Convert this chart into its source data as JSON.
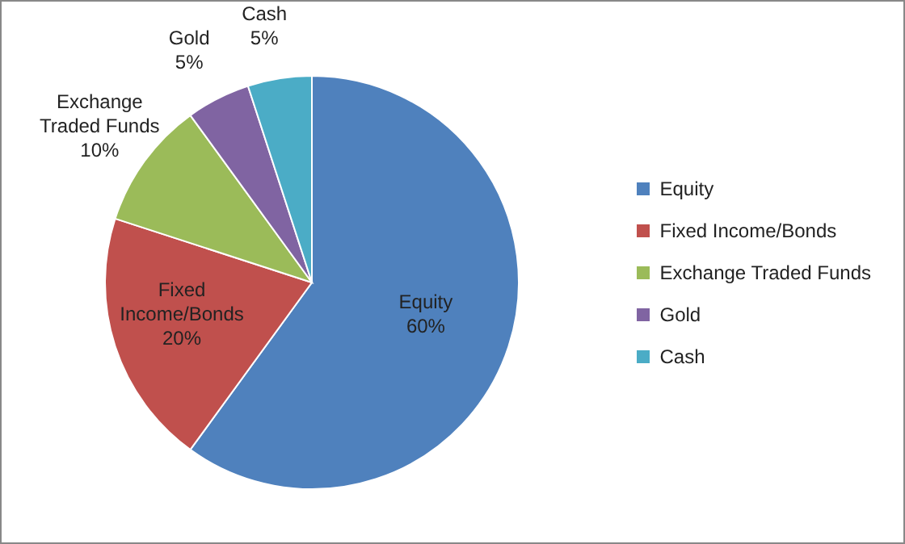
{
  "chart_data": {
    "type": "pie",
    "categories": [
      "Equity",
      "Fixed Income/Bonds",
      "Exchange Traded Funds",
      "Gold",
      "Cash"
    ],
    "values": [
      60,
      20,
      10,
      5,
      5
    ],
    "value_labels": [
      "60%",
      "20%",
      "10%",
      "5%",
      "5%"
    ],
    "colors": [
      "#4f81bd",
      "#c0504d",
      "#9bbb59",
      "#8064a2",
      "#4bacc6"
    ],
    "legend": "right"
  }
}
